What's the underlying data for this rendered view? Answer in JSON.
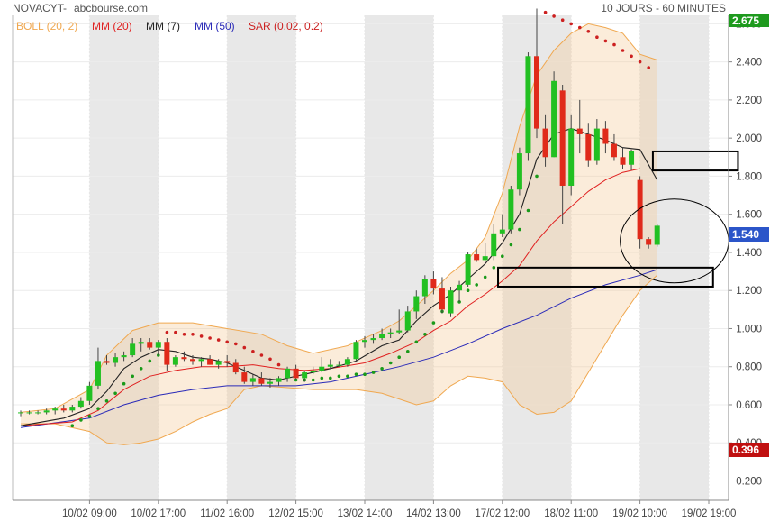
{
  "header": {
    "symbol": "NOVACYT",
    "separator": " - ",
    "source": "abcbourse.com",
    "period": "10 JOURS - 60 MINUTES"
  },
  "legend": [
    {
      "label": "BOLL (20, 2)",
      "color": "#f0a850"
    },
    {
      "label": "MM (20)",
      "color": "#e02020"
    },
    {
      "label": "MM (7)",
      "color": "#222222"
    },
    {
      "label": "MM (50)",
      "color": "#2a2ab8"
    },
    {
      "label": "SAR (0.02, 0.2)",
      "color": "#cc2020"
    }
  ],
  "chart_data": {
    "type": "candlestick",
    "y_ticks": [
      "0.200",
      "0.400",
      "0.600",
      "0.800",
      "1.000",
      "1.200",
      "1.400",
      "1.600",
      "1.800",
      "2.000",
      "2.200",
      "2.400",
      "2.600"
    ],
    "ylim": [
      0.13,
      2.7
    ],
    "x_tick_labels": [
      "10/02 09:00",
      "10/02 17:00",
      "11/02 16:00",
      "12/02 15:00",
      "13/02 14:00",
      "14/02 13:00",
      "17/02 12:00",
      "18/02 11:00",
      "19/02 10:00",
      "19/02 19:00"
    ],
    "x_tick_index": [
      8,
      16,
      24,
      32,
      40,
      48,
      56,
      64,
      72,
      80
    ],
    "shaded_index_ranges": [
      [
        8,
        16
      ],
      [
        24,
        32
      ],
      [
        40,
        48
      ],
      [
        56,
        64
      ],
      [
        72,
        80
      ]
    ],
    "last_price_label": "1.540",
    "low_label": "0.396",
    "top_label": "2.675",
    "candles": [
      {
        "o": 0.56,
        "h": 0.57,
        "l": 0.54,
        "c": 0.56
      },
      {
        "o": 0.56,
        "h": 0.57,
        "l": 0.55,
        "c": 0.56
      },
      {
        "o": 0.56,
        "h": 0.57,
        "l": 0.55,
        "c": 0.56
      },
      {
        "o": 0.56,
        "h": 0.58,
        "l": 0.55,
        "c": 0.57
      },
      {
        "o": 0.57,
        "h": 0.59,
        "l": 0.55,
        "c": 0.58
      },
      {
        "o": 0.58,
        "h": 0.6,
        "l": 0.56,
        "c": 0.57
      },
      {
        "o": 0.57,
        "h": 0.6,
        "l": 0.56,
        "c": 0.59
      },
      {
        "o": 0.59,
        "h": 0.64,
        "l": 0.58,
        "c": 0.62
      },
      {
        "o": 0.62,
        "h": 0.72,
        "l": 0.6,
        "c": 0.7
      },
      {
        "o": 0.7,
        "h": 0.9,
        "l": 0.68,
        "c": 0.83
      },
      {
        "o": 0.83,
        "h": 0.86,
        "l": 0.81,
        "c": 0.82
      },
      {
        "o": 0.82,
        "h": 0.87,
        "l": 0.8,
        "c": 0.85
      },
      {
        "o": 0.85,
        "h": 0.88,
        "l": 0.83,
        "c": 0.86
      },
      {
        "o": 0.86,
        "h": 0.95,
        "l": 0.85,
        "c": 0.92
      },
      {
        "o": 0.92,
        "h": 0.95,
        "l": 0.88,
        "c": 0.93
      },
      {
        "o": 0.93,
        "h": 0.95,
        "l": 0.89,
        "c": 0.9
      },
      {
        "o": 0.9,
        "h": 0.94,
        "l": 0.86,
        "c": 0.93
      },
      {
        "o": 0.93,
        "h": 0.95,
        "l": 0.78,
        "c": 0.81
      },
      {
        "o": 0.81,
        "h": 0.86,
        "l": 0.8,
        "c": 0.85
      },
      {
        "o": 0.85,
        "h": 0.88,
        "l": 0.83,
        "c": 0.84
      },
      {
        "o": 0.84,
        "h": 0.86,
        "l": 0.81,
        "c": 0.83
      },
      {
        "o": 0.83,
        "h": 0.85,
        "l": 0.8,
        "c": 0.84
      },
      {
        "o": 0.84,
        "h": 0.86,
        "l": 0.81,
        "c": 0.81
      },
      {
        "o": 0.81,
        "h": 0.84,
        "l": 0.79,
        "c": 0.83
      },
      {
        "o": 0.83,
        "h": 0.86,
        "l": 0.8,
        "c": 0.82
      },
      {
        "o": 0.82,
        "h": 0.84,
        "l": 0.76,
        "c": 0.77
      },
      {
        "o": 0.77,
        "h": 0.8,
        "l": 0.71,
        "c": 0.72
      },
      {
        "o": 0.72,
        "h": 0.76,
        "l": 0.7,
        "c": 0.74
      },
      {
        "o": 0.74,
        "h": 0.77,
        "l": 0.7,
        "c": 0.71
      },
      {
        "o": 0.71,
        "h": 0.74,
        "l": 0.69,
        "c": 0.72
      },
      {
        "o": 0.72,
        "h": 0.75,
        "l": 0.7,
        "c": 0.74
      },
      {
        "o": 0.74,
        "h": 0.8,
        "l": 0.72,
        "c": 0.79
      },
      {
        "o": 0.79,
        "h": 0.81,
        "l": 0.73,
        "c": 0.74
      },
      {
        "o": 0.74,
        "h": 0.78,
        "l": 0.72,
        "c": 0.77
      },
      {
        "o": 0.77,
        "h": 0.8,
        "l": 0.76,
        "c": 0.78
      },
      {
        "o": 0.78,
        "h": 0.85,
        "l": 0.77,
        "c": 0.8
      },
      {
        "o": 0.8,
        "h": 0.84,
        "l": 0.79,
        "c": 0.81
      },
      {
        "o": 0.81,
        "h": 0.83,
        "l": 0.8,
        "c": 0.81
      },
      {
        "o": 0.81,
        "h": 0.85,
        "l": 0.8,
        "c": 0.84
      },
      {
        "o": 0.84,
        "h": 0.94,
        "l": 0.83,
        "c": 0.93
      },
      {
        "o": 0.93,
        "h": 0.96,
        "l": 0.9,
        "c": 0.94
      },
      {
        "o": 0.94,
        "h": 0.97,
        "l": 0.92,
        "c": 0.95
      },
      {
        "o": 0.95,
        "h": 1.0,
        "l": 0.94,
        "c": 0.97
      },
      {
        "o": 0.97,
        "h": 1.0,
        "l": 0.95,
        "c": 0.98
      },
      {
        "o": 0.98,
        "h": 1.1,
        "l": 0.97,
        "c": 0.99
      },
      {
        "o": 0.99,
        "h": 1.12,
        "l": 0.98,
        "c": 1.09
      },
      {
        "o": 1.09,
        "h": 1.2,
        "l": 1.05,
        "c": 1.17
      },
      {
        "o": 1.17,
        "h": 1.28,
        "l": 1.13,
        "c": 1.26
      },
      {
        "o": 1.26,
        "h": 1.3,
        "l": 1.18,
        "c": 1.21
      },
      {
        "o": 1.21,
        "h": 1.27,
        "l": 1.08,
        "c": 1.1
      },
      {
        "o": 1.08,
        "h": 1.22,
        "l": 1.06,
        "c": 1.2
      },
      {
        "o": 1.2,
        "h": 1.25,
        "l": 1.14,
        "c": 1.23
      },
      {
        "o": 1.23,
        "h": 1.4,
        "l": 1.22,
        "c": 1.39
      },
      {
        "o": 1.39,
        "h": 1.42,
        "l": 1.35,
        "c": 1.36
      },
      {
        "o": 1.36,
        "h": 1.45,
        "l": 1.34,
        "c": 1.38
      },
      {
        "o": 1.38,
        "h": 1.55,
        "l": 1.36,
        "c": 1.5
      },
      {
        "o": 1.5,
        "h": 1.6,
        "l": 1.48,
        "c": 1.52
      },
      {
        "o": 1.52,
        "h": 1.75,
        "l": 1.5,
        "c": 1.73
      },
      {
        "o": 1.73,
        "h": 1.95,
        "l": 1.7,
        "c": 1.92
      },
      {
        "o": 1.92,
        "h": 2.45,
        "l": 1.88,
        "c": 2.43
      },
      {
        "o": 2.43,
        "h": 2.68,
        "l": 2.0,
        "c": 2.05
      },
      {
        "o": 2.05,
        "h": 2.12,
        "l": 1.85,
        "c": 1.9
      },
      {
        "o": 1.9,
        "h": 2.35,
        "l": 1.9,
        "c": 2.3
      },
      {
        "o": 2.25,
        "h": 2.28,
        "l": 1.55,
        "c": 1.75
      },
      {
        "o": 1.75,
        "h": 2.12,
        "l": 1.7,
        "c": 2.05
      },
      {
        "o": 2.05,
        "h": 2.2,
        "l": 1.92,
        "c": 2.02
      },
      {
        "o": 2.02,
        "h": 2.08,
        "l": 1.85,
        "c": 1.88
      },
      {
        "o": 1.88,
        "h": 2.1,
        "l": 1.86,
        "c": 2.05
      },
      {
        "o": 2.05,
        "h": 2.09,
        "l": 1.92,
        "c": 1.97
      },
      {
        "o": 1.97,
        "h": 2.02,
        "l": 1.88,
        "c": 1.9
      },
      {
        "o": 1.9,
        "h": 1.95,
        "l": 1.84,
        "c": 1.86
      },
      {
        "o": 1.86,
        "h": 1.94,
        "l": 1.83,
        "c": 1.93
      },
      {
        "o": 1.78,
        "h": 1.8,
        "l": 1.42,
        "c": 1.47
      },
      {
        "o": 1.47,
        "h": 1.48,
        "l": 1.42,
        "c": 1.44
      },
      {
        "o": 1.44,
        "h": 1.55,
        "l": 1.43,
        "c": 1.54
      }
    ],
    "boll_upper": [
      [
        0,
        0.56
      ],
      [
        4,
        0.58
      ],
      [
        8,
        0.68
      ],
      [
        10,
        0.86
      ],
      [
        13,
        0.99
      ],
      [
        16,
        1.03
      ],
      [
        20,
        1.03
      ],
      [
        24,
        1.0
      ],
      [
        28,
        0.97
      ],
      [
        31,
        0.91
      ],
      [
        34,
        0.87
      ],
      [
        38,
        0.91
      ],
      [
        42,
        0.99
      ],
      [
        44,
        1.04
      ],
      [
        46,
        1.12
      ],
      [
        48,
        1.2
      ],
      [
        50,
        1.29
      ],
      [
        52,
        1.36
      ],
      [
        54,
        1.48
      ],
      [
        56,
        1.71
      ],
      [
        58,
        2.06
      ],
      [
        60,
        2.33
      ],
      [
        62,
        2.46
      ],
      [
        64,
        2.55
      ],
      [
        66,
        2.6
      ],
      [
        68,
        2.58
      ],
      [
        70,
        2.55
      ],
      [
        72,
        2.44
      ],
      [
        74,
        2.41
      ]
    ],
    "boll_lower": [
      [
        0,
        0.5
      ],
      [
        4,
        0.5
      ],
      [
        8,
        0.46
      ],
      [
        10,
        0.4
      ],
      [
        12,
        0.39
      ],
      [
        14,
        0.4
      ],
      [
        16,
        0.42
      ],
      [
        18,
        0.46
      ],
      [
        20,
        0.51
      ],
      [
        22,
        0.55
      ],
      [
        24,
        0.58
      ],
      [
        26,
        0.68
      ],
      [
        28,
        0.7
      ],
      [
        31,
        0.69
      ],
      [
        34,
        0.68
      ],
      [
        36,
        0.68
      ],
      [
        39,
        0.68
      ],
      [
        42,
        0.66
      ],
      [
        44,
        0.63
      ],
      [
        46,
        0.6
      ],
      [
        48,
        0.62
      ],
      [
        50,
        0.7
      ],
      [
        52,
        0.75
      ],
      [
        54,
        0.74
      ],
      [
        56,
        0.72
      ],
      [
        58,
        0.6
      ],
      [
        60,
        0.55
      ],
      [
        62,
        0.56
      ],
      [
        64,
        0.62
      ],
      [
        66,
        0.77
      ],
      [
        68,
        0.92
      ],
      [
        70,
        1.07
      ],
      [
        72,
        1.2
      ],
      [
        74,
        1.28
      ]
    ],
    "mm20": [
      [
        0,
        0.49
      ],
      [
        6,
        0.51
      ],
      [
        9,
        0.57
      ],
      [
        12,
        0.68
      ],
      [
        15,
        0.75
      ],
      [
        18,
        0.78
      ],
      [
        21,
        0.8
      ],
      [
        24,
        0.8
      ],
      [
        27,
        0.81
      ],
      [
        30,
        0.79
      ],
      [
        33,
        0.78
      ],
      [
        36,
        0.79
      ],
      [
        40,
        0.82
      ],
      [
        43,
        0.87
      ],
      [
        46,
        0.93
      ],
      [
        48,
        0.99
      ],
      [
        50,
        1.04
      ],
      [
        52,
        1.12
      ],
      [
        54,
        1.18
      ],
      [
        56,
        1.25
      ],
      [
        58,
        1.33
      ],
      [
        60,
        1.46
      ],
      [
        62,
        1.56
      ],
      [
        64,
        1.64
      ],
      [
        66,
        1.72
      ],
      [
        68,
        1.78
      ],
      [
        70,
        1.82
      ],
      [
        72,
        1.84
      ]
    ],
    "mm7": [
      [
        0,
        0.49
      ],
      [
        5,
        0.53
      ],
      [
        8,
        0.58
      ],
      [
        10,
        0.67
      ],
      [
        12,
        0.79
      ],
      [
        14,
        0.85
      ],
      [
        16,
        0.89
      ],
      [
        18,
        0.88
      ],
      [
        20,
        0.85
      ],
      [
        22,
        0.84
      ],
      [
        24,
        0.82
      ],
      [
        26,
        0.78
      ],
      [
        28,
        0.74
      ],
      [
        30,
        0.73
      ],
      [
        33,
        0.76
      ],
      [
        36,
        0.79
      ],
      [
        39,
        0.83
      ],
      [
        42,
        0.91
      ],
      [
        44,
        0.94
      ],
      [
        46,
        1.04
      ],
      [
        48,
        1.12
      ],
      [
        50,
        1.18
      ],
      [
        52,
        1.26
      ],
      [
        54,
        1.34
      ],
      [
        56,
        1.45
      ],
      [
        58,
        1.6
      ],
      [
        60,
        1.89
      ],
      [
        62,
        2.02
      ],
      [
        64,
        2.05
      ],
      [
        66,
        2.02
      ],
      [
        68,
        1.99
      ],
      [
        70,
        1.95
      ],
      [
        72,
        1.94
      ],
      [
        74,
        1.78
      ]
    ],
    "mm50": [
      [
        0,
        0.48
      ],
      [
        8,
        0.53
      ],
      [
        12,
        0.6
      ],
      [
        16,
        0.65
      ],
      [
        20,
        0.68
      ],
      [
        24,
        0.7
      ],
      [
        28,
        0.7
      ],
      [
        32,
        0.7
      ],
      [
        36,
        0.72
      ],
      [
        40,
        0.76
      ],
      [
        44,
        0.8
      ],
      [
        48,
        0.85
      ],
      [
        52,
        0.92
      ],
      [
        56,
        1.0
      ],
      [
        60,
        1.07
      ],
      [
        64,
        1.16
      ],
      [
        68,
        1.23
      ],
      [
        72,
        1.28
      ],
      [
        74,
        1.31
      ]
    ],
    "sar": [
      [
        6,
        0.49
      ],
      [
        7,
        0.52
      ],
      [
        8,
        0.54
      ],
      [
        9,
        0.58
      ],
      [
        10,
        0.62
      ],
      [
        11,
        0.66
      ],
      [
        12,
        0.71
      ],
      [
        13,
        0.75
      ],
      [
        14,
        0.79
      ],
      [
        15,
        0.83
      ],
      [
        16,
        0.86
      ],
      [
        17,
        0.98
      ],
      [
        18,
        0.98
      ],
      [
        19,
        0.97
      ],
      [
        20,
        0.97
      ],
      [
        21,
        0.96
      ],
      [
        22,
        0.95
      ],
      [
        23,
        0.94
      ],
      [
        24,
        0.93
      ],
      [
        25,
        0.92
      ],
      [
        26,
        0.9
      ],
      [
        27,
        0.88
      ],
      [
        28,
        0.86
      ],
      [
        29,
        0.84
      ],
      [
        30,
        0.81
      ],
      [
        31,
        0.78
      ],
      [
        32,
        0.73
      ],
      [
        33,
        0.73
      ],
      [
        34,
        0.73
      ],
      [
        35,
        0.74
      ],
      [
        36,
        0.74
      ],
      [
        37,
        0.75
      ],
      [
        38,
        0.75
      ],
      [
        39,
        0.76
      ],
      [
        40,
        0.76
      ],
      [
        41,
        0.77
      ],
      [
        42,
        0.79
      ],
      [
        43,
        0.82
      ],
      [
        44,
        0.85
      ],
      [
        45,
        0.88
      ],
      [
        46,
        0.93
      ],
      [
        47,
        0.97
      ],
      [
        48,
        1.03
      ],
      [
        49,
        1.09
      ],
      [
        50,
        1.12
      ],
      [
        51,
        1.14
      ],
      [
        52,
        1.2
      ],
      [
        53,
        1.23
      ],
      [
        54,
        1.27
      ],
      [
        55,
        1.32
      ],
      [
        56,
        1.38
      ],
      [
        57,
        1.44
      ],
      [
        58,
        1.52
      ],
      [
        59,
        1.62
      ],
      [
        60,
        1.8
      ],
      [
        61,
        2.66
      ],
      [
        62,
        2.64
      ],
      [
        63,
        2.62
      ],
      [
        64,
        2.6
      ],
      [
        65,
        2.58
      ],
      [
        66,
        2.56
      ],
      [
        67,
        2.53
      ],
      [
        68,
        2.51
      ],
      [
        69,
        2.49
      ],
      [
        70,
        2.46
      ],
      [
        71,
        2.43
      ],
      [
        72,
        2.4
      ],
      [
        73,
        2.37
      ]
    ]
  },
  "annotations": {
    "rect_upper": {
      "i0": 73.5,
      "i1": 83.4,
      "v0": 1.93,
      "v1": 1.83
    },
    "rect_lower": {
      "i0": 55.5,
      "i1": 80.5,
      "v0": 1.32,
      "v1": 1.22
    },
    "ellipse": {
      "ci": 76.0,
      "cv": 1.46,
      "ri": 6.3,
      "rv": 0.22
    }
  }
}
